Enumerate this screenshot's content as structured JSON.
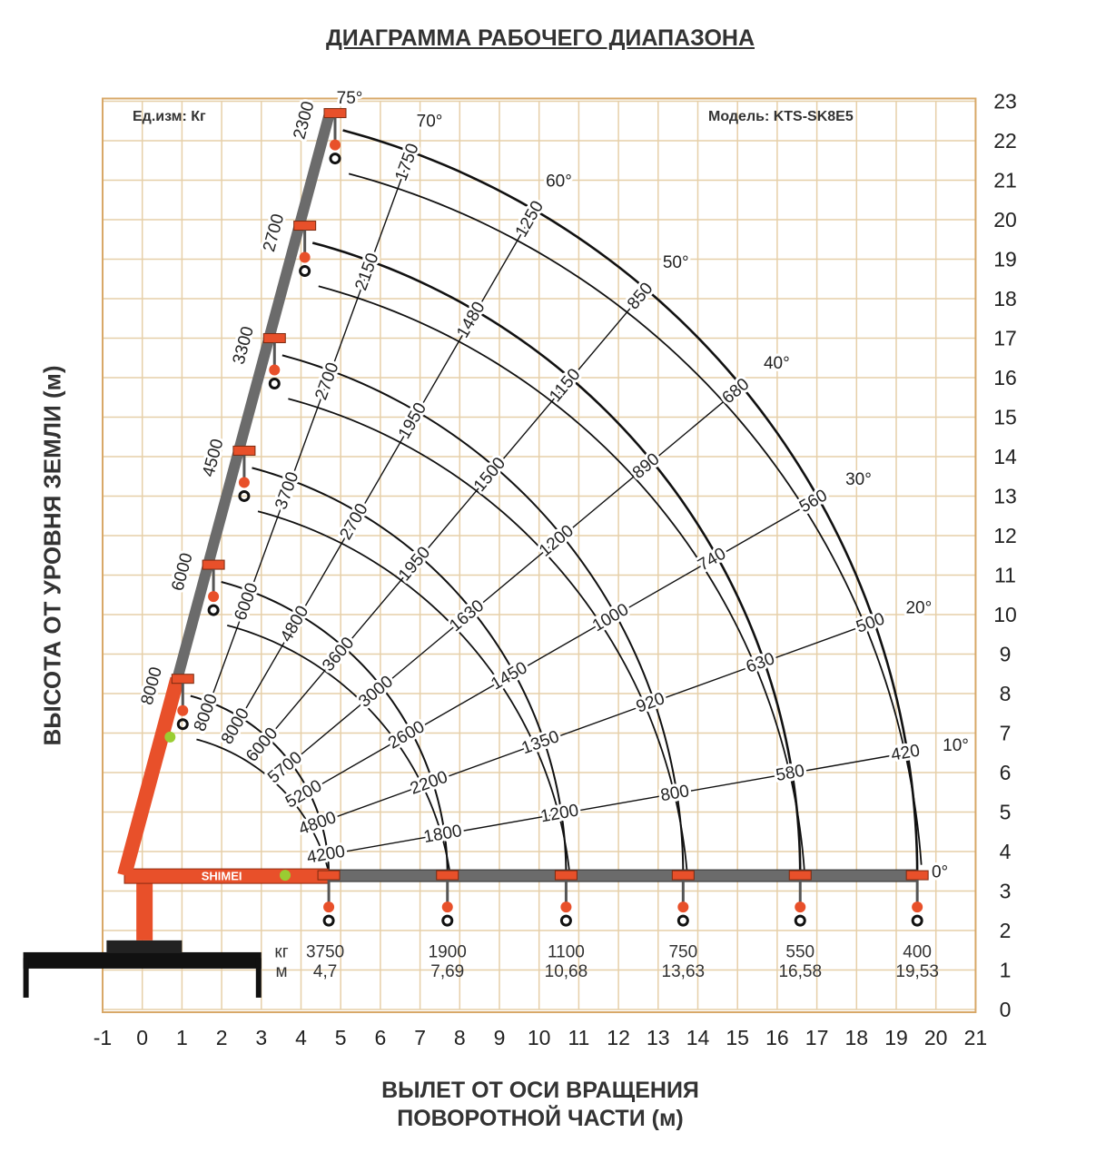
{
  "title": "ДИАГРАММА РАБОЧЕГО ДИАПАЗОНА",
  "units_note": "Ед.изм: Кг",
  "model_note": "Модель: KTS-SK8E5",
  "brand": "SHIMEI",
  "colors": {
    "grid": "#e6cfa8",
    "frame": "#d8a868",
    "boom": "#6b6b6b",
    "crane": "#e8502a",
    "marker": "#9acd32"
  },
  "chart_data": {
    "type": "line",
    "title": "ДИАГРАММА РАБОЧЕГО ДИАПАЗОНА",
    "xlabel": [
      "ВЫЛЕТ ОТ ОСИ ВРАЩЕНИЯ",
      "ПОВОРОТНОЙ ЧАСТИ (м)"
    ],
    "ylabel": "ВЫСОТА ОТ УРОВНЯ ЗЕМЛИ (м)",
    "xlim": [
      -1,
      21
    ],
    "ylim": [
      0,
      23
    ],
    "x_ticks": [
      "-1",
      "0",
      "1",
      "2",
      "3",
      "4",
      "5",
      "6",
      "7",
      "8",
      "9",
      "10",
      "11",
      "12",
      "13",
      "14",
      "15",
      "16",
      "17",
      "18",
      "19",
      "20",
      "21"
    ],
    "y_ticks": [
      "0",
      "1",
      "2",
      "3",
      "4",
      "5",
      "6",
      "7",
      "8",
      "9",
      "10",
      "11",
      "12",
      "13",
      "14",
      "15",
      "16",
      "17",
      "18",
      "19",
      "20",
      "21",
      "22",
      "23"
    ],
    "grid": true,
    "boom_pivot_height": 3.4,
    "boom_reach_m": [
      4.7,
      7.69,
      10.68,
      13.63,
      16.58,
      19.53
    ],
    "table_header": {
      "kg": "кг",
      "m": "м"
    },
    "table_0deg": {
      "kg": [
        "3750",
        "1900",
        "1100",
        "750",
        "550",
        "400"
      ],
      "m": [
        "4,7",
        "7,69",
        "10,68",
        "13,63",
        "16,58",
        "19,53"
      ]
    },
    "angle_series": [
      {
        "angle": 10,
        "label": "10°",
        "loads": [
          "4200",
          "1800",
          "1200",
          "800",
          "580",
          "420"
        ]
      },
      {
        "angle": 20,
        "label": "20°",
        "loads": [
          "4800",
          "2200",
          "1350",
          "920",
          "630",
          "500"
        ]
      },
      {
        "angle": 30,
        "label": "30°",
        "loads": [
          "5200",
          "2600",
          "1450",
          "1000",
          "740",
          "560"
        ]
      },
      {
        "angle": 40,
        "label": "40°",
        "loads": [
          "5700",
          "3000",
          "1630",
          "1200",
          "890",
          "680"
        ]
      },
      {
        "angle": 50,
        "label": "50°",
        "loads": [
          "6000",
          "3600",
          "1950",
          "1500",
          "1150",
          "850"
        ]
      },
      {
        "angle": 60,
        "label": "60°",
        "loads": [
          "8000",
          "4800",
          "2700",
          "1950",
          "1480",
          "1250"
        ]
      },
      {
        "angle": 70,
        "label": "70°",
        "loads": [
          "8000",
          "6000",
          "3700",
          "2700",
          "2150",
          "1750"
        ]
      }
    ],
    "boom_75": {
      "angle": 75,
      "label": "75°",
      "loads": [
        "8000",
        "6000",
        "4500",
        "3300",
        "2700",
        "2300"
      ]
    },
    "boom_0_label": "0°"
  }
}
